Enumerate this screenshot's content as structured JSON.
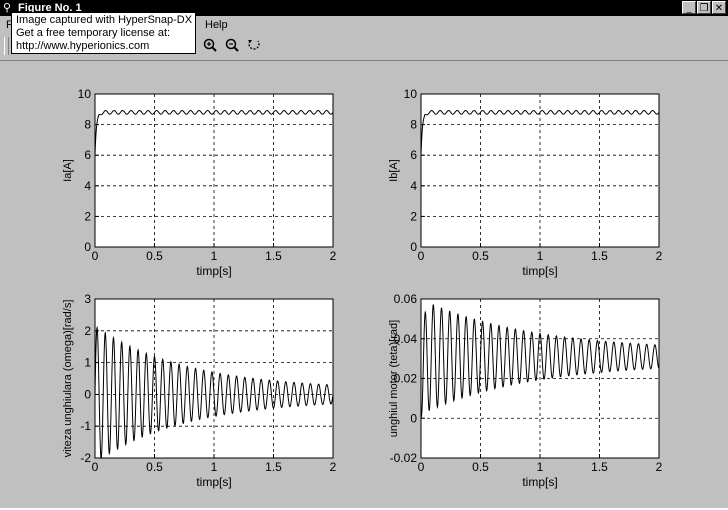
{
  "window": {
    "title": "Figure No. 1",
    "icon": "matlab-figure-icon",
    "controls": [
      "_",
      "❐",
      "✕"
    ]
  },
  "menu": {
    "first_letter": "F",
    "help": "Help"
  },
  "toolbar": {
    "tools": [
      "zoom-in-icon",
      "zoom-out-icon",
      "rotate-icon"
    ]
  },
  "overlay": {
    "line1": "Image captured with HyperSnap-DX",
    "line2": "Get a free temporary license at:",
    "line3": "http://www.hyperionics.com"
  },
  "colors": {
    "background": "#c0c0c0",
    "plot_bg": "#ffffff",
    "line": "#000000"
  },
  "chart_data": [
    {
      "type": "line",
      "xlabel": "timp[s]",
      "ylabel": "Ia[A]",
      "xlim": [
        0,
        2
      ],
      "ylim": [
        0,
        10
      ],
      "xticks": [
        0,
        0.5,
        1,
        1.5,
        2
      ],
      "yticks": [
        0,
        2,
        4,
        6,
        8,
        10
      ],
      "grid": true,
      "signal": {
        "kind": "step",
        "start": 6,
        "final": 8.8,
        "rise_tau": 0.012,
        "ripple": 0.12,
        "ripple_freq": 14
      }
    },
    {
      "type": "line",
      "xlabel": "timp[s]",
      "ylabel": "Ib[A]",
      "xlim": [
        0,
        2
      ],
      "ylim": [
        0,
        10
      ],
      "xticks": [
        0,
        0.5,
        1,
        1.5,
        2
      ],
      "yticks": [
        0,
        2,
        4,
        6,
        8,
        10
      ],
      "grid": true,
      "signal": {
        "kind": "step",
        "start": 6,
        "final": 8.8,
        "rise_tau": 0.012,
        "ripple": 0.12,
        "ripple_freq": 14
      }
    },
    {
      "type": "line",
      "xlabel": "timp[s]",
      "ylabel": "viteza unghiulara (omega)[rad/s]",
      "xlim": [
        0,
        2
      ],
      "ylim": [
        -2,
        3
      ],
      "xticks": [
        0,
        0.5,
        1,
        1.5,
        2
      ],
      "yticks": [
        -2,
        -1,
        0,
        1,
        2,
        3
      ],
      "grid": true,
      "signal": {
        "kind": "damped",
        "offset": 0,
        "amplitude": 2.0,
        "decay": 1.3,
        "freq": 14.5,
        "floor": 0.15
      }
    },
    {
      "type": "line",
      "xlabel": "timp[s]",
      "ylabel": "unghiul motor (teta)[rad]",
      "xlim": [
        0,
        2
      ],
      "ylim": [
        -0.02,
        0.06
      ],
      "xticks": [
        0,
        0.5,
        1,
        1.5,
        2
      ],
      "yticks": [
        -0.02,
        0,
        0.02,
        0.04,
        0.06
      ],
      "ytick_labels": [
        "-0.02",
        "0",
        "0.02",
        "0.04",
        "0.06"
      ],
      "grid": true,
      "signal": {
        "kind": "damped_ramp",
        "offset": 0.031,
        "amplitude": 0.026,
        "decay": 1.1,
        "freq": 14.5,
        "floor": 0.003,
        "start": 0
      }
    }
  ]
}
